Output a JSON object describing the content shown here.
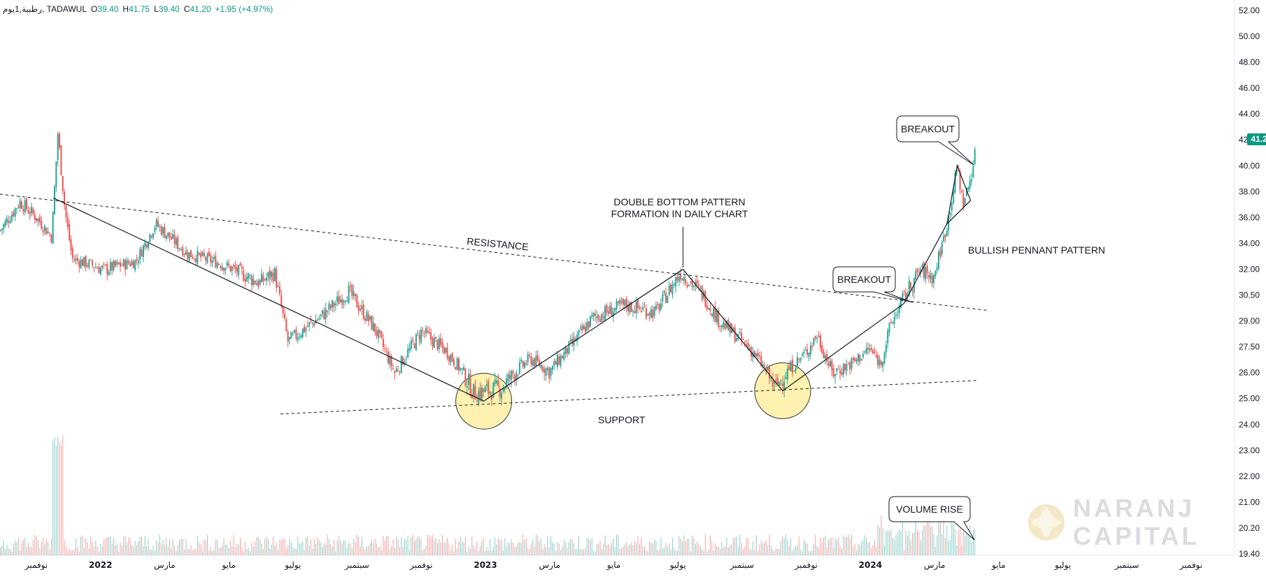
{
  "header": {
    "symbol": "رطبية,1يوم, TADAWUL",
    "open_label": "O",
    "open": "39.40",
    "high_label": "H",
    "high": "41.75",
    "low_label": "L",
    "low": "39.40",
    "close_label": "C",
    "close": "41.20",
    "change": "+1.95 (+4.97%)"
  },
  "last_price": "41.20",
  "colors": {
    "up": "#26a69a",
    "down": "#ef5350",
    "price_tag": "#089981",
    "highlight_circle": "#fff2b0",
    "watermark": "#d7d9dc"
  },
  "watermark": {
    "line1": "NARANJ",
    "line2": "CAPITAL",
    "logo_icon": "naranj-logo-icon"
  },
  "annotations": {
    "double_bottom": [
      "DOUBLE BOTTOM PATTERN",
      "FORMATION IN DAILY CHART"
    ],
    "resistance": "RESISTANCE",
    "support": "SUPPORT",
    "breakout_1": "BREAKOUT",
    "breakout_2": "BREAKOUT",
    "pennant": "BULLISH PENNANT PATTERN",
    "volume_rise": "VOLUME RISE"
  },
  "chart_data": {
    "type": "candlestick",
    "scale": "log",
    "y_ticks": [
      "52.00",
      "50.00",
      "48.00",
      "46.00",
      "44.00",
      "42.00",
      "40.00",
      "38.00",
      "36.00",
      "34.00",
      "32.00",
      "30.50",
      "29.00",
      "27.50",
      "26.00",
      "25.00",
      "24.00",
      "23.00",
      "22.00",
      "21.00",
      "20.20",
      "19.40"
    ],
    "x_ticks": [
      "نوفمبر",
      "2022",
      "مارس",
      "مايو",
      "يوليو",
      "سبتمبر",
      "نوفمبر",
      "2023",
      "مارس",
      "مايو",
      "يوليو",
      "سبتمبر",
      "نوفمبر",
      "2024",
      "مارس",
      "مايو",
      "يوليو",
      "سبتمبر",
      "نوفمبر"
    ],
    "price_path": [
      {
        "date": "2021-10-01",
        "close": 35.0
      },
      {
        "date": "2021-10-20",
        "close": 37.2
      },
      {
        "date": "2021-11-05",
        "close": 36.0
      },
      {
        "date": "2021-11-20",
        "close": 34.5
      },
      {
        "date": "2021-11-26",
        "close": 42.5
      },
      {
        "date": "2021-12-03",
        "close": 36.5
      },
      {
        "date": "2021-12-10",
        "close": 32.8
      },
      {
        "date": "2022-01-10",
        "close": 32.0
      },
      {
        "date": "2022-02-10",
        "close": 32.6
      },
      {
        "date": "2022-03-01",
        "close": 35.5
      },
      {
        "date": "2022-04-01",
        "close": 33.2
      },
      {
        "date": "2022-05-01",
        "close": 32.5
      },
      {
        "date": "2022-06-10",
        "close": 31.2
      },
      {
        "date": "2022-06-25",
        "close": 31.8
      },
      {
        "date": "2022-07-08",
        "close": 27.8
      },
      {
        "date": "2022-08-10",
        "close": 29.3
      },
      {
        "date": "2022-09-05",
        "close": 30.7
      },
      {
        "date": "2022-10-01",
        "close": 28.5
      },
      {
        "date": "2022-10-20",
        "close": 26.0
      },
      {
        "date": "2022-11-15",
        "close": 28.4
      },
      {
        "date": "2022-12-10",
        "close": 27.2
      },
      {
        "date": "2023-01-05",
        "close": 25.2
      },
      {
        "date": "2023-02-01",
        "close": 25.4
      },
      {
        "date": "2023-03-01",
        "close": 26.8
      },
      {
        "date": "2023-03-20",
        "close": 26.1
      },
      {
        "date": "2023-04-10",
        "close": 27.6
      },
      {
        "date": "2023-05-01",
        "close": 29.2
      },
      {
        "date": "2023-06-01",
        "close": 29.9
      },
      {
        "date": "2023-07-01",
        "close": 29.5
      },
      {
        "date": "2023-07-25",
        "close": 31.8
      },
      {
        "date": "2023-08-15",
        "close": 30.6
      },
      {
        "date": "2023-09-01",
        "close": 29.0
      },
      {
        "date": "2023-10-01",
        "close": 27.4
      },
      {
        "date": "2023-10-25",
        "close": 25.4
      },
      {
        "date": "2023-11-10",
        "close": 26.3
      },
      {
        "date": "2023-11-25",
        "close": 27.2
      },
      {
        "date": "2023-12-05",
        "close": 28.2
      },
      {
        "date": "2023-12-20",
        "close": 26.0
      },
      {
        "date": "2024-01-10",
        "close": 26.6
      },
      {
        "date": "2024-01-25",
        "close": 27.4
      },
      {
        "date": "2024-02-05",
        "close": 26.5
      },
      {
        "date": "2024-02-15",
        "close": 28.8
      },
      {
        "date": "2024-02-28",
        "close": 30.4
      },
      {
        "date": "2024-03-15",
        "close": 32.0
      },
      {
        "date": "2024-03-28",
        "close": 31.5
      },
      {
        "date": "2024-04-10",
        "close": 35.5
      },
      {
        "date": "2024-04-20",
        "close": 40.0
      },
      {
        "date": "2024-04-25",
        "close": 37.0
      },
      {
        "date": "2024-05-01",
        "close": 38.5
      },
      {
        "date": "2024-05-08",
        "close": 41.2
      }
    ],
    "trendlines": {
      "resistance": [
        {
          "date": "2021-10-01",
          "price": 37.8
        },
        {
          "date": "2024-05-20",
          "price": 29.6
        }
      ],
      "support": [
        {
          "date": "2022-07-01",
          "price": 24.4
        },
        {
          "date": "2024-05-10",
          "price": 25.7
        }
      ]
    },
    "double_bottom_pattern": [
      {
        "date": "2021-11-22",
        "price": 37.5
      },
      {
        "date": "2023-01-15",
        "price": 24.9
      },
      {
        "date": "2023-07-28",
        "price": 32.0
      },
      {
        "date": "2023-11-02",
        "price": 25.3
      },
      {
        "date": "2024-02-28",
        "price": 30.0
      }
    ],
    "pennant": [
      {
        "date": "2024-04-20",
        "price": 40.0
      },
      {
        "date": "2024-05-03",
        "price": 37.3
      },
      {
        "date": "2024-04-10",
        "price": 35.5
      }
    ]
  }
}
